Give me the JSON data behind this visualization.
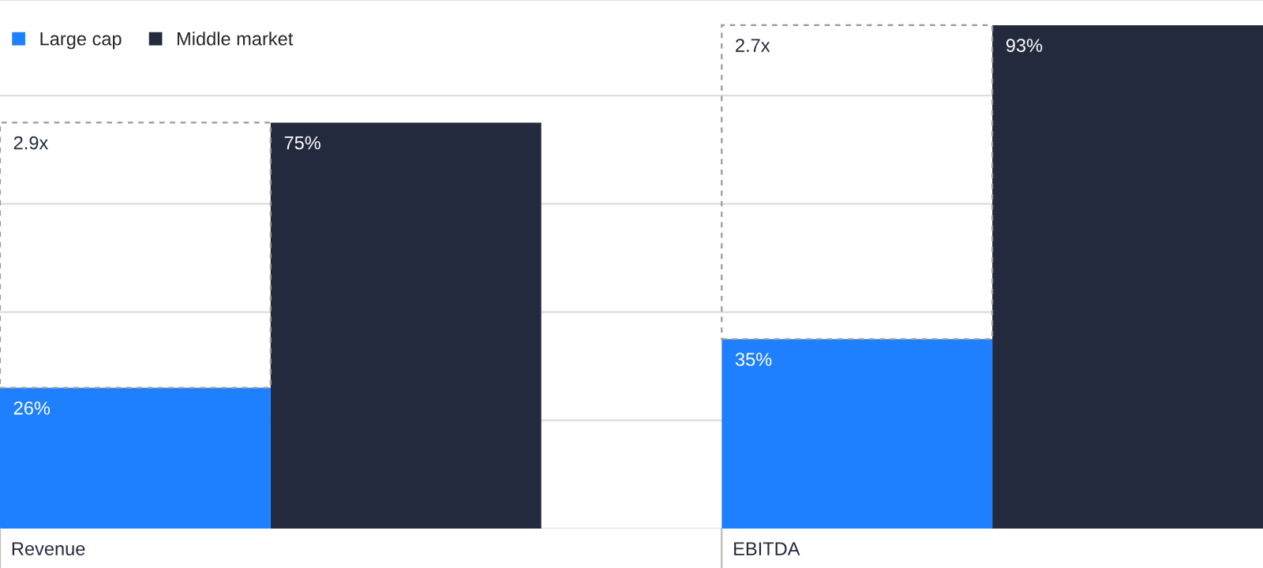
{
  "chart_data": {
    "type": "bar",
    "categories": [
      "Revenue",
      "EBITDA"
    ],
    "series": [
      {
        "name": "Large cap",
        "color": "#1e80ff",
        "values": [
          26,
          35
        ],
        "value_labels": [
          "26%",
          "35%"
        ]
      },
      {
        "name": "Middle market",
        "color": "#232a3d",
        "values": [
          75,
          93
        ],
        "value_labels": [
          "75%",
          "93%"
        ]
      }
    ],
    "tick_labels": "x",
    "grid": "y",
    "legend": "top left",
    "annotations": [
      "2.9x",
      "2.7x"
    ]
  }
}
